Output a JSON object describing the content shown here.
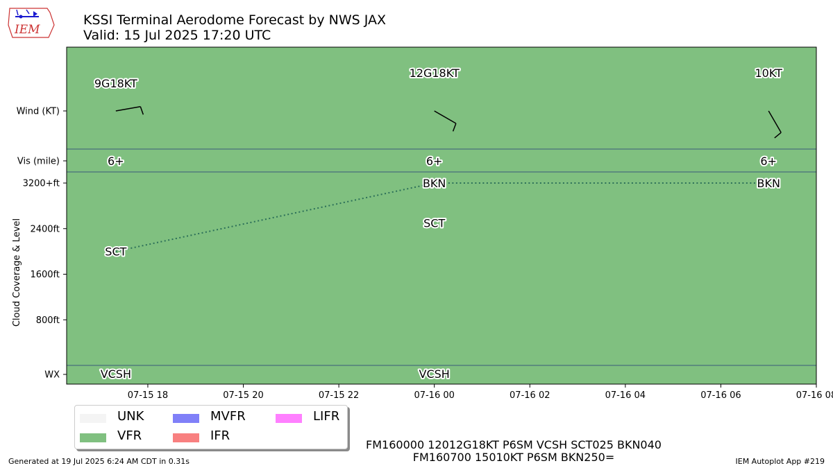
{
  "header": {
    "title_line1": "KSSI Terminal Aerodome Forecast by NWS JAX",
    "title_line2": "Valid: 15 Jul 2025 17:20 UTC",
    "logo_text": "IEM"
  },
  "chart_data": {
    "type": "line",
    "background_category": "VFR",
    "y_ticks": [
      {
        "label": "Wind (KT)",
        "row": "wind"
      },
      {
        "label": "Vis (mile)",
        "row": "vis"
      },
      {
        "label": "3200+ft",
        "row": "cloud",
        "ft": 3200
      },
      {
        "label": "2400ft",
        "row": "cloud",
        "ft": 2400
      },
      {
        "label": "1600ft",
        "row": "cloud",
        "ft": 1600
      },
      {
        "label": "800ft",
        "row": "cloud",
        "ft": 800
      },
      {
        "label": "WX",
        "row": "wx"
      }
    ],
    "ylabel": "Cloud Coverage & Level",
    "x_ticks": [
      "07-15 18",
      "07-15 20",
      "07-15 22",
      "07-16 00",
      "07-16 02",
      "07-16 04",
      "07-16 06",
      "07-16 08"
    ],
    "x_range_hours": [
      16.3,
      32.0
    ],
    "periods": [
      {
        "time_hours": 17.33,
        "wind_label": "9G18KT",
        "wind_dir_deg": 80,
        "wind_kt": 9,
        "vis_label": "6+",
        "clouds": [
          {
            "cover": "SCT",
            "ft": 2000
          }
        ],
        "wx": "VCSH"
      },
      {
        "time_hours": 24.0,
        "wind_label": "12G18KT",
        "wind_dir_deg": 120,
        "wind_kt": 12,
        "vis_label": "6+",
        "clouds": [
          {
            "cover": "SCT",
            "ft": 2500
          },
          {
            "cover": "BKN",
            "ft": 4000
          }
        ],
        "wx": "VCSH"
      },
      {
        "time_hours": 31.0,
        "wind_label": "10KT",
        "wind_dir_deg": 150,
        "wind_kt": 10,
        "vis_label": "6+",
        "clouds": [
          {
            "cover": "BKN",
            "ft": 25000
          }
        ],
        "wx": ""
      }
    ],
    "ceiling_line": [
      {
        "time_hours": 17.33,
        "ft": 2000
      },
      {
        "time_hours": 24.0,
        "ft": 4000
      },
      {
        "time_hours": 31.0,
        "ft": 25000
      }
    ]
  },
  "legend": {
    "items": [
      {
        "label": "UNK",
        "color": "#f4f4f4"
      },
      {
        "label": "VFR",
        "color": "#80c080"
      },
      {
        "label": "MVFR",
        "color": "#8080f8"
      },
      {
        "label": "IFR",
        "color": "#f88080"
      },
      {
        "label": "LIFR",
        "color": "#ff80ff"
      }
    ]
  },
  "raw_taf": {
    "line1": "FM160000 12012G18KT P6SM VCSH SCT025 BKN040",
    "line2": "FM160700 15010KT P6SM BKN250="
  },
  "footer": {
    "left": "Generated at 19 Jul 2025 6:24 AM CDT in 0.31s",
    "right": "IEM Autoplot App #219"
  },
  "colors": {
    "vfr_fill": "#80c080",
    "row_divider": "#3a5a7a",
    "ceiling_line": "#2b6f58"
  }
}
